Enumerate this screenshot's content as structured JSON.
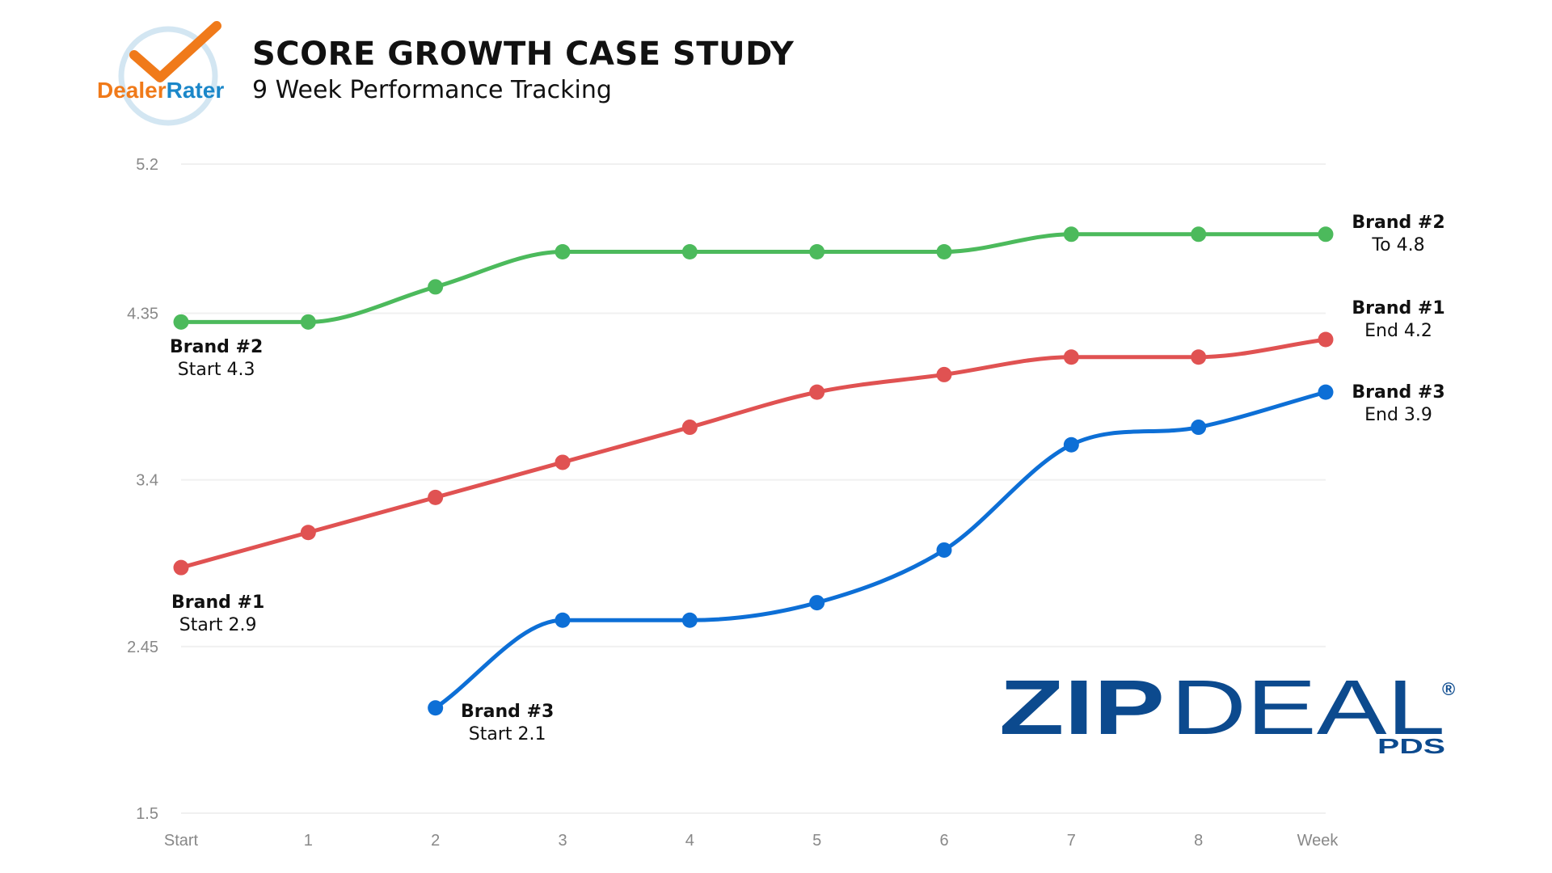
{
  "header": {
    "title": "SCORE GROWTH CASE STUDY",
    "subtitle": "9 Week Performance Tracking",
    "left_logo": "DealerRater",
    "right_logo": {
      "main": "ZIPDEAL",
      "sub": "PDS",
      "mark": "®"
    }
  },
  "colors": {
    "brand1": "#e05252",
    "brand2": "#4cba5c",
    "brand3": "#0d6fd6",
    "grid": "#f0f0f0",
    "tick_text": "#888888",
    "zipdeal": "#0c4a8e",
    "dealerrater_orange": "#f07a1a",
    "dealerrater_blue": "#1b87c9"
  },
  "chart_data": {
    "type": "line",
    "title": "",
    "xlabel": "",
    "ylabel": "",
    "categories": [
      "Start",
      "1",
      "2",
      "3",
      "4",
      "5",
      "6",
      "7",
      "8",
      "Week"
    ],
    "yticks": [
      "5.2",
      "4.35",
      "3.4",
      "2.45",
      "1.5"
    ],
    "ylim": [
      1.5,
      5.2
    ],
    "grid": true,
    "smooth": true,
    "series": [
      {
        "key": "brand2",
        "values": [
          4.3,
          4.3,
          4.5,
          4.7,
          4.7,
          4.7,
          4.7,
          4.8,
          4.8,
          4.8
        ]
      },
      {
        "key": "brand1",
        "values": [
          2.9,
          3.1,
          3.3,
          3.5,
          3.7,
          3.9,
          4.0,
          4.1,
          4.1,
          4.2
        ]
      },
      {
        "key": "brand3",
        "values": [
          null,
          null,
          2.1,
          2.6,
          2.6,
          2.7,
          3.0,
          3.6,
          3.7,
          3.9
        ]
      }
    ],
    "annotations": {
      "brand2_start": {
        "name": "Brand #2",
        "text": "Start 4.3"
      },
      "brand1_start": {
        "name": "Brand #1",
        "text": "Start 2.9"
      },
      "brand3_start": {
        "name": "Brand #3",
        "text": "Start 2.1"
      },
      "brand2_end": {
        "name": "Brand #2",
        "text": "To 4.8"
      },
      "brand1_end": {
        "name": "Brand #1",
        "text": "End 4.2"
      },
      "brand3_end": {
        "name": "Brand #3",
        "text": "End 3.9"
      }
    }
  }
}
